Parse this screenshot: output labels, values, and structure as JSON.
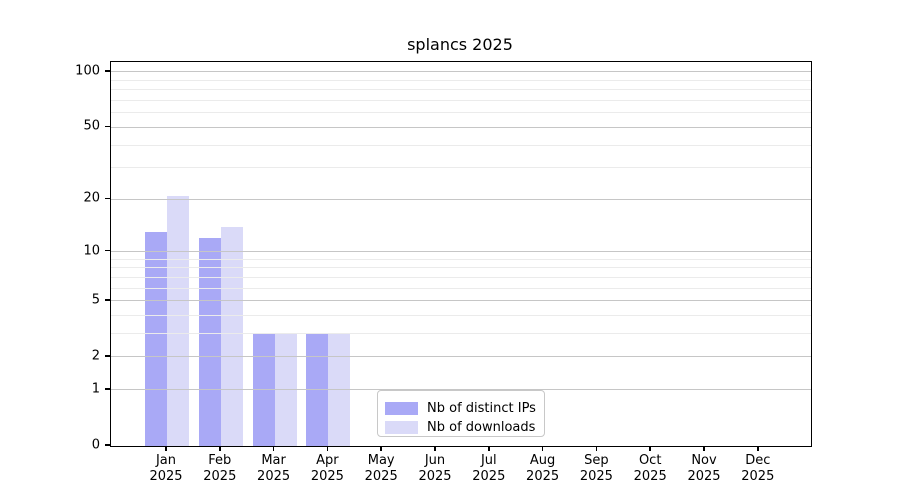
{
  "title": "splancs 2025",
  "chart_data": {
    "type": "bar",
    "title": "splancs 2025",
    "x_months": [
      "Jan",
      "Feb",
      "Mar",
      "Apr",
      "May",
      "Jun",
      "Jul",
      "Aug",
      "Sep",
      "Oct",
      "Nov",
      "Dec"
    ],
    "x_year": "2025",
    "categories": [
      "Jan 2025",
      "Feb 2025",
      "Mar 2025",
      "Apr 2025",
      "May 2025",
      "Jun 2025",
      "Jul 2025",
      "Aug 2025",
      "Sep 2025",
      "Oct 2025",
      "Nov 2025",
      "Dec 2025"
    ],
    "series": [
      {
        "name": "Nb of distinct IPs",
        "color": "#a9a9f6",
        "values": [
          13,
          12,
          3,
          3,
          0,
          0,
          0,
          0,
          0,
          0,
          0,
          0
        ]
      },
      {
        "name": "Nb of downloads",
        "color": "#dadaf8",
        "values": [
          21,
          14,
          3,
          3,
          0,
          0,
          0,
          0,
          0,
          0,
          0,
          0
        ]
      }
    ],
    "y_scale": "log10(1+v)",
    "y_major_ticks": [
      0,
      1,
      2,
      5,
      10,
      20,
      50,
      100
    ],
    "y_minor_gridlines": [
      3,
      4,
      6,
      7,
      8,
      9,
      30,
      40,
      60,
      70,
      80,
      90
    ],
    "ylim": [
      0,
      113
    ],
    "xlabel": "",
    "ylabel": "",
    "grid": "major and minor horizontal gridlines drawn above bars",
    "legend_position": "bottom-center"
  },
  "colors": {
    "background": "#ffffff",
    "spine": "#000000",
    "grid_major": "#c6c6c6",
    "grid_minor": "#ebebeb",
    "legend_border": "#c8c8c8",
    "text": "#000000"
  }
}
